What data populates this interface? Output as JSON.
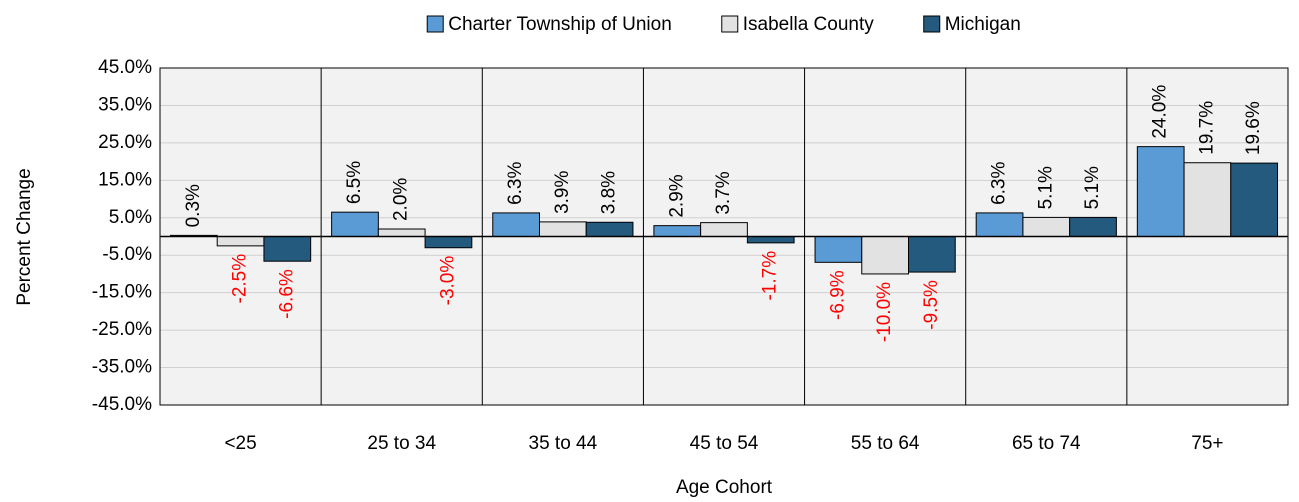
{
  "chart_data": {
    "type": "bar",
    "x_label": "Age Cohort",
    "y_label": "Percent Change",
    "categories": [
      "<25",
      "25 to 34",
      "35 to 44",
      "45 to 54",
      "55 to 64",
      "65 to 74",
      "75+"
    ],
    "series": [
      {
        "name": "Charter Township of Union",
        "color": "#5b9bd5",
        "values": [
          0.3,
          6.5,
          6.3,
          2.9,
          -6.9,
          6.3,
          24.0
        ],
        "value_labels": [
          "0.3%",
          "6.5%",
          "6.3%",
          "2.9%",
          "-6.9%",
          "6.3%",
          "24.0%"
        ]
      },
      {
        "name": "Isabella County",
        "color": "#e2e2e2",
        "values": [
          -2.5,
          2.0,
          3.9,
          3.7,
          -10.0,
          5.1,
          19.7
        ],
        "value_labels": [
          "-2.5%",
          "2.0%",
          "3.9%",
          "3.7%",
          "-10.0%",
          "5.1%",
          "19.7%"
        ]
      },
      {
        "name": "Michigan",
        "color": "#245a7e",
        "values": [
          -6.6,
          -3.0,
          3.8,
          -1.7,
          -9.5,
          5.1,
          19.6
        ],
        "value_labels": [
          "-6.6%",
          "-3.0%",
          "3.8%",
          "-1.7%",
          "-9.5%",
          "5.1%",
          "19.6%"
        ]
      }
    ],
    "ylim": [
      -45,
      45
    ],
    "yticks": [
      {
        "value": -45,
        "label": "-45.0%"
      },
      {
        "value": -35,
        "label": "-35.0%"
      },
      {
        "value": -25,
        "label": "-25.0%"
      },
      {
        "value": -15,
        "label": "-15.0%"
      },
      {
        "value": -5,
        "label": "-5.0%"
      },
      {
        "value": 5,
        "label": "5.0%"
      },
      {
        "value": 15,
        "label": "15.0%"
      },
      {
        "value": 25,
        "label": "25.0%"
      },
      {
        "value": 35,
        "label": "35.0%"
      },
      {
        "value": 45,
        "label": "45.0%"
      }
    ],
    "grid": true,
    "legend": "top",
    "positive_label_color": "#000000",
    "negative_label_color": "#ff0000"
  }
}
